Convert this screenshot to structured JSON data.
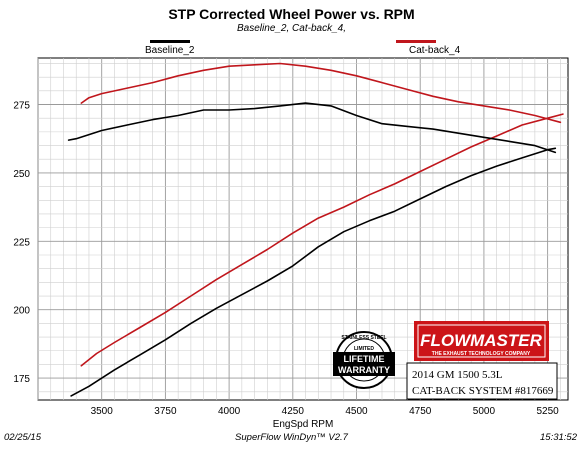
{
  "chart_data": {
    "type": "line",
    "title": "STP Corrected Wheel Power vs. RPM",
    "subtitle": "Baseline_2, Cat-back_4,",
    "xlabel": "EngSpd RPM",
    "ylabel": "",
    "xlim": [
      3250,
      5330
    ],
    "ylim": [
      167,
      292
    ],
    "xticks": [
      3500,
      3750,
      4000,
      4250,
      4500,
      4750,
      5000,
      5250
    ],
    "yticks": [
      175,
      200,
      225,
      250,
      275
    ],
    "grid": true,
    "legend_position": "top",
    "series": [
      {
        "name": "Baseline_2",
        "color": "#000000",
        "role": "power",
        "points": [
          [
            3380,
            168.5
          ],
          [
            3450,
            172
          ],
          [
            3550,
            178
          ],
          [
            3650,
            183.5
          ],
          [
            3750,
            189
          ],
          [
            3850,
            195
          ],
          [
            3950,
            200.5
          ],
          [
            4050,
            205.5
          ],
          [
            4150,
            210.5
          ],
          [
            4250,
            216
          ],
          [
            4350,
            223
          ],
          [
            4450,
            228.5
          ],
          [
            4550,
            232.5
          ],
          [
            4650,
            236
          ],
          [
            4750,
            240.5
          ],
          [
            4850,
            245
          ],
          [
            4950,
            249
          ],
          [
            5050,
            252.5
          ],
          [
            5150,
            255.5
          ],
          [
            5250,
            258.5
          ],
          [
            5280,
            259
          ]
        ]
      },
      {
        "name": "Cat-back_4",
        "color": "#c0161c",
        "role": "power",
        "points": [
          [
            3420,
            179.5
          ],
          [
            3480,
            184
          ],
          [
            3550,
            188
          ],
          [
            3650,
            193.5
          ],
          [
            3750,
            199
          ],
          [
            3850,
            205
          ],
          [
            3950,
            211
          ],
          [
            4050,
            216.5
          ],
          [
            4150,
            222
          ],
          [
            4250,
            228
          ],
          [
            4350,
            233.5
          ],
          [
            4450,
            237.5
          ],
          [
            4550,
            242
          ],
          [
            4650,
            246
          ],
          [
            4750,
            250.5
          ],
          [
            4850,
            255
          ],
          [
            4950,
            259.5
          ],
          [
            5050,
            263.5
          ],
          [
            5150,
            267.5
          ],
          [
            5250,
            270
          ],
          [
            5310,
            271.5
          ]
        ]
      },
      {
        "name": "Baseline_2",
        "color": "#000000",
        "role": "torque",
        "points": [
          [
            3370,
            262
          ],
          [
            3400,
            262.5
          ],
          [
            3450,
            264
          ],
          [
            3500,
            265.5
          ],
          [
            3600,
            267.5
          ],
          [
            3700,
            269.5
          ],
          [
            3800,
            271
          ],
          [
            3900,
            273
          ],
          [
            4000,
            273
          ],
          [
            4100,
            273.5
          ],
          [
            4200,
            274.5
          ],
          [
            4300,
            275.5
          ],
          [
            4400,
            274.5
          ],
          [
            4500,
            271
          ],
          [
            4600,
            268
          ],
          [
            4700,
            267
          ],
          [
            4800,
            266
          ],
          [
            4900,
            264.5
          ],
          [
            5000,
            263
          ],
          [
            5100,
            261.5
          ],
          [
            5200,
            260
          ],
          [
            5280,
            257.5
          ]
        ]
      },
      {
        "name": "Cat-back_4",
        "color": "#c0161c",
        "role": "torque",
        "points": [
          [
            3420,
            275.5
          ],
          [
            3450,
            277.5
          ],
          [
            3500,
            279
          ],
          [
            3600,
            281
          ],
          [
            3700,
            283
          ],
          [
            3800,
            285.5
          ],
          [
            3900,
            287.5
          ],
          [
            4000,
            289
          ],
          [
            4100,
            289.5
          ],
          [
            4200,
            290
          ],
          [
            4300,
            289
          ],
          [
            4400,
            287.5
          ],
          [
            4500,
            285.5
          ],
          [
            4600,
            283
          ],
          [
            4700,
            280.5
          ],
          [
            4800,
            278
          ],
          [
            4900,
            276
          ],
          [
            5000,
            274.5
          ],
          [
            5100,
            273
          ],
          [
            5200,
            271
          ],
          [
            5300,
            268.5
          ]
        ]
      }
    ]
  },
  "footer": {
    "date": "02/25/15",
    "software": "SuperFlow WinDyn™ V2.7",
    "time": "15:31:52"
  },
  "logos": {
    "warranty_text_top": "STAINLESS STEEL",
    "warranty_text_mid": "LIMITED",
    "warranty_line1": "LIFETIME",
    "warranty_line2": "WARRANTY",
    "brand_name": "FLOWMASTER",
    "brand_tagline": "THE EXHAUST TECHNOLOGY COMPANY",
    "vehicle_line1": "2014 GM 1500 5.3L",
    "vehicle_line2": "CAT-BACK SYSTEM #817669"
  }
}
